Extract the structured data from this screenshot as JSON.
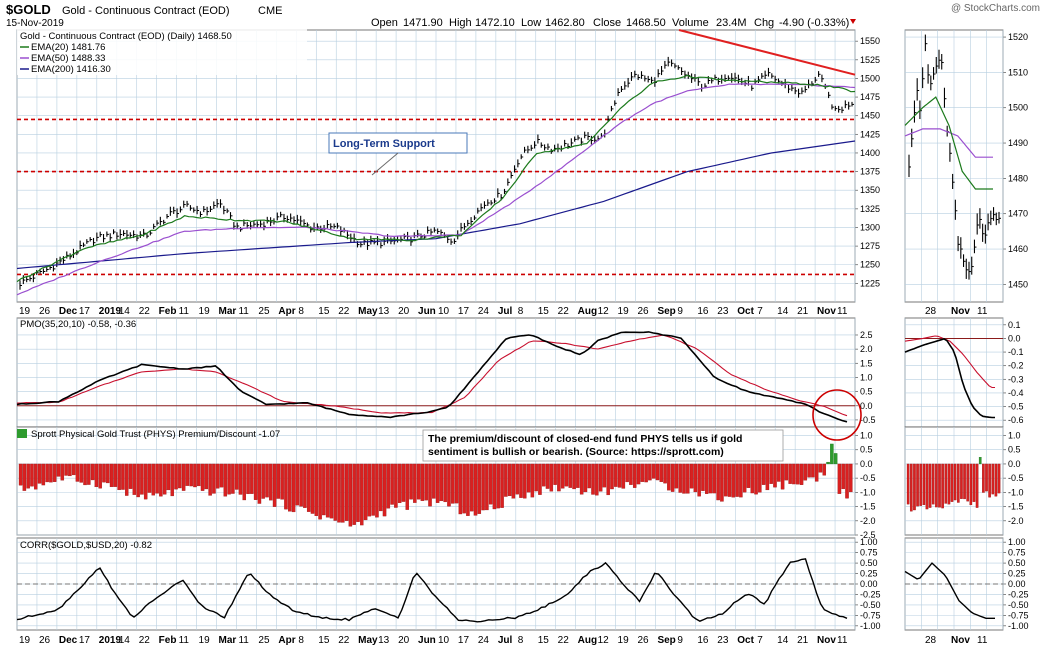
{
  "header": {
    "symbol": "$GOLD",
    "name": "Gold - Continuous Contract (EOD)",
    "exchange": "CME",
    "date": "15-Nov-2019",
    "watermark": "@ StockCharts.com",
    "open_label": "Open",
    "open": "1471.90",
    "high_label": "High",
    "high": "1472.10",
    "low_label": "Low",
    "low": "1462.80",
    "close_label": "Close",
    "close": "1468.50",
    "volume_label": "Volume",
    "volume": "23.4M",
    "chg_label": "Chg",
    "chg": "-4.90 (-0.33%)"
  },
  "colors": {
    "price": "#000000",
    "ema20": "#1c7a1c",
    "ema50": "#9a4fcf",
    "ema200": "#1a1a8c",
    "support": "#cc0000",
    "trend": "#e02020",
    "pmo": "#000000",
    "pmo_signal": "#c8102e",
    "hist_up": "#2e9b2e",
    "hist_down": "#d92020",
    "grid": "#b8cfe0",
    "panel_bg": "#ffffff"
  },
  "legend": {
    "main_title": "Gold - Continuous Contract (EOD) (Daily) 1468.50",
    "ema20": "EMA(20) 1481.76",
    "ema50": "EMA(50) 1488.33",
    "ema200": "EMA(200) 1416.30",
    "pmo": "PMO(35,20,10) -0.58, -0.36",
    "phys": "Sprott Physical Gold Trust (PHYS) Premium/Discount -1.07",
    "corr": "CORR($GOLD,$USD,20) -0.82"
  },
  "annotations": {
    "support_label": "Long-Term Support",
    "phys_note_line1": "The premium/discount of closed-end fund PHYS tells us if gold",
    "phys_note_line2": "sentiment is bullish or bearish. (Source: https://sprott.com)"
  },
  "x_labels_main": [
    "19",
    "26",
    "Dec",
    "17",
    "2019",
    "14",
    "22",
    "Feb",
    "11",
    "19",
    "Mar",
    "11",
    "25",
    "Apr",
    "8",
    "15",
    "22",
    "May",
    "13",
    "20",
    "Jun",
    "10",
    "17",
    "24",
    "Jul",
    "8",
    "15",
    "22",
    "Aug",
    "12",
    "19",
    "26",
    "Sep",
    "9",
    "16",
    "23",
    "Oct",
    "7",
    "14",
    "21",
    "Nov",
    "11"
  ],
  "x_labels_right": [
    "28",
    "Nov",
    "11"
  ],
  "chart_data": [
    {
      "type": "line",
      "title": "Gold - Continuous Contract (EOD) (Daily) 1468.50",
      "ylim": [
        1200,
        1565
      ],
      "y_ticks": [
        1225,
        1250,
        1275,
        1300,
        1325,
        1350,
        1375,
        1400,
        1425,
        1450,
        1475,
        1500,
        1525,
        1550
      ],
      "support_levels": [
        1445,
        1375,
        1237
      ],
      "trend_line": [
        [
          0.79,
          1565
        ],
        [
          1.0,
          1505
        ]
      ],
      "anchors_close": [
        [
          0,
          1225
        ],
        [
          0.03,
          1242
        ],
        [
          0.06,
          1262
        ],
        [
          0.09,
          1285
        ],
        [
          0.12,
          1292
        ],
        [
          0.15,
          1288
        ],
        [
          0.18,
          1318
        ],
        [
          0.2,
          1328
        ],
        [
          0.22,
          1320
        ],
        [
          0.24,
          1333
        ],
        [
          0.26,
          1300
        ],
        [
          0.29,
          1305
        ],
        [
          0.32,
          1315
        ],
        [
          0.35,
          1300
        ],
        [
          0.38,
          1300
        ],
        [
          0.41,
          1278
        ],
        [
          0.44,
          1280
        ],
        [
          0.47,
          1285
        ],
        [
          0.5,
          1295
        ],
        [
          0.52,
          1282
        ],
        [
          0.54,
          1310
        ],
        [
          0.56,
          1333
        ],
        [
          0.58,
          1345
        ],
        [
          0.6,
          1393
        ],
        [
          0.62,
          1415
        ],
        [
          0.64,
          1405
        ],
        [
          0.66,
          1412
        ],
        [
          0.68,
          1420
        ],
        [
          0.7,
          1420
        ],
        [
          0.72,
          1485
        ],
        [
          0.74,
          1505
        ],
        [
          0.76,
          1495
        ],
        [
          0.78,
          1520
        ],
        [
          0.8,
          1505
        ],
        [
          0.82,
          1490
        ],
        [
          0.85,
          1505
        ],
        [
          0.88,
          1490
        ],
        [
          0.9,
          1505
        ],
        [
          0.92,
          1490
        ],
        [
          0.94,
          1480
        ],
        [
          0.96,
          1505
        ],
        [
          0.98,
          1455
        ],
        [
          1.0,
          1468
        ]
      ],
      "ema20_anchors": [
        [
          0,
          1228
        ],
        [
          0.08,
          1272
        ],
        [
          0.15,
          1290
        ],
        [
          0.2,
          1315
        ],
        [
          0.26,
          1310
        ],
        [
          0.32,
          1308
        ],
        [
          0.4,
          1285
        ],
        [
          0.47,
          1283
        ],
        [
          0.53,
          1290
        ],
        [
          0.58,
          1340
        ],
        [
          0.62,
          1400
        ],
        [
          0.68,
          1412
        ],
        [
          0.72,
          1460
        ],
        [
          0.76,
          1495
        ],
        [
          0.8,
          1503
        ],
        [
          0.85,
          1497
        ],
        [
          0.9,
          1495
        ],
        [
          0.95,
          1492
        ],
        [
          0.98,
          1487
        ],
        [
          1.0,
          1482
        ]
      ],
      "ema50_anchors": [
        [
          0,
          1210
        ],
        [
          0.1,
          1255
        ],
        [
          0.2,
          1295
        ],
        [
          0.28,
          1300
        ],
        [
          0.35,
          1300
        ],
        [
          0.45,
          1288
        ],
        [
          0.53,
          1290
        ],
        [
          0.6,
          1340
        ],
        [
          0.65,
          1380
        ],
        [
          0.72,
          1440
        ],
        [
          0.76,
          1467
        ],
        [
          0.8,
          1483
        ],
        [
          0.85,
          1492
        ],
        [
          0.9,
          1492
        ],
        [
          0.95,
          1491
        ],
        [
          1.0,
          1488
        ]
      ],
      "ema200_anchors": [
        [
          0,
          1245
        ],
        [
          0.2,
          1265
        ],
        [
          0.4,
          1280
        ],
        [
          0.5,
          1285
        ],
        [
          0.6,
          1305
        ],
        [
          0.7,
          1335
        ],
        [
          0.8,
          1375
        ],
        [
          0.9,
          1400
        ],
        [
          1.0,
          1416
        ]
      ],
      "right_panel": {
        "ylim": [
          1445,
          1522
        ],
        "y_ticks": [
          1450,
          1460,
          1470,
          1480,
          1490,
          1500,
          1510,
          1520
        ],
        "anchors_close": [
          [
            0,
            1485
          ],
          [
            0.08,
            1505
          ],
          [
            0.12,
            1500
          ],
          [
            0.18,
            1518
          ],
          [
            0.22,
            1505
          ],
          [
            0.28,
            1508
          ],
          [
            0.35,
            1515
          ],
          [
            0.42,
            1495
          ],
          [
            0.48,
            1480
          ],
          [
            0.55,
            1462
          ],
          [
            0.6,
            1455
          ],
          [
            0.68,
            1452
          ],
          [
            0.72,
            1458
          ],
          [
            0.78,
            1470
          ],
          [
            0.85,
            1462
          ],
          [
            0.9,
            1468
          ]
        ],
        "ema20_anchors": [
          [
            0,
            1495
          ],
          [
            0.2,
            1500
          ],
          [
            0.35,
            1503
          ],
          [
            0.5,
            1495
          ],
          [
            0.65,
            1482
          ],
          [
            0.8,
            1477
          ]
        ],
        "ema50_anchors": [
          [
            0,
            1492
          ],
          [
            0.2,
            1494
          ],
          [
            0.4,
            1494
          ],
          [
            0.6,
            1492
          ],
          [
            0.8,
            1486
          ]
        ]
      }
    },
    {
      "type": "line",
      "title": "PMO(35,20,10) -0.58, -0.36",
      "ylim": [
        -0.75,
        3.1
      ],
      "y_ticks": [
        -0.5,
        0.0,
        0.5,
        1.0,
        1.5,
        2.0,
        2.5
      ],
      "reference": 0.0,
      "pmo_anchors": [
        [
          0,
          0.05
        ],
        [
          0.05,
          0.15
        ],
        [
          0.1,
          0.9
        ],
        [
          0.15,
          1.45
        ],
        [
          0.2,
          1.3
        ],
        [
          0.24,
          1.4
        ],
        [
          0.27,
          0.5
        ],
        [
          0.3,
          0.05
        ],
        [
          0.35,
          0.1
        ],
        [
          0.4,
          -0.3
        ],
        [
          0.45,
          -0.4
        ],
        [
          0.5,
          -0.2
        ],
        [
          0.52,
          -0.05
        ],
        [
          0.55,
          1.0
        ],
        [
          0.59,
          2.4
        ],
        [
          0.62,
          2.5
        ],
        [
          0.65,
          2.1
        ],
        [
          0.68,
          1.8
        ],
        [
          0.7,
          2.3
        ],
        [
          0.73,
          2.6
        ],
        [
          0.76,
          2.6
        ],
        [
          0.8,
          2.4
        ],
        [
          0.84,
          1.0
        ],
        [
          0.88,
          0.5
        ],
        [
          0.92,
          0.25
        ],
        [
          0.95,
          0.05
        ],
        [
          0.97,
          -0.25
        ],
        [
          1.0,
          -0.58
        ]
      ],
      "signal_anchors": [
        [
          0,
          0.1
        ],
        [
          0.05,
          0.12
        ],
        [
          0.1,
          0.7
        ],
        [
          0.15,
          1.2
        ],
        [
          0.2,
          1.3
        ],
        [
          0.24,
          1.2
        ],
        [
          0.28,
          0.7
        ],
        [
          0.32,
          0.15
        ],
        [
          0.38,
          0.0
        ],
        [
          0.44,
          -0.25
        ],
        [
          0.5,
          -0.25
        ],
        [
          0.54,
          0.3
        ],
        [
          0.58,
          1.6
        ],
        [
          0.62,
          2.3
        ],
        [
          0.66,
          2.2
        ],
        [
          0.7,
          2.0
        ],
        [
          0.74,
          2.3
        ],
        [
          0.78,
          2.5
        ],
        [
          0.82,
          2.0
        ],
        [
          0.86,
          1.1
        ],
        [
          0.9,
          0.6
        ],
        [
          0.94,
          0.2
        ],
        [
          0.97,
          0.0
        ],
        [
          1.0,
          -0.36
        ]
      ],
      "right_panel": {
        "ylim": [
          -0.65,
          0.15
        ],
        "y_ticks": [
          -0.6,
          -0.5,
          -0.4,
          -0.3,
          -0.2,
          -0.1,
          0.0,
          0.1
        ],
        "pmo_anchors": [
          [
            0,
            -0.1
          ],
          [
            0.2,
            -0.05
          ],
          [
            0.35,
            -0.02
          ],
          [
            0.45,
            0.0
          ],
          [
            0.55,
            -0.1
          ],
          [
            0.65,
            -0.35
          ],
          [
            0.75,
            -0.5
          ],
          [
            0.85,
            -0.57
          ],
          [
            0.95,
            -0.58
          ]
        ],
        "signal_anchors": [
          [
            0,
            -0.02
          ],
          [
            0.2,
            0.0
          ],
          [
            0.35,
            0.02
          ],
          [
            0.5,
            -0.02
          ],
          [
            0.65,
            -0.12
          ],
          [
            0.8,
            -0.25
          ],
          [
            0.95,
            -0.36
          ]
        ]
      }
    },
    {
      "type": "bar",
      "title": "Sprott Physical Gold Trust (PHYS) Premium/Discount -1.07",
      "ylim": [
        -2.5,
        1.3
      ],
      "y_ticks": [
        -2.5,
        -2.0,
        -1.5,
        -1.0,
        -0.5,
        0.0,
        0.5,
        1.0
      ],
      "anchors": [
        [
          0,
          -0.9
        ],
        [
          0.05,
          -0.5
        ],
        [
          0.1,
          -0.7
        ],
        [
          0.15,
          -1.2
        ],
        [
          0.2,
          -0.9
        ],
        [
          0.25,
          -1.0
        ],
        [
          0.3,
          -1.3
        ],
        [
          0.35,
          -1.7
        ],
        [
          0.4,
          -2.2
        ],
        [
          0.45,
          -1.5
        ],
        [
          0.5,
          -1.3
        ],
        [
          0.55,
          -1.8
        ],
        [
          0.6,
          -1.1
        ],
        [
          0.65,
          -0.8
        ],
        [
          0.7,
          -1.0
        ],
        [
          0.75,
          -0.6
        ],
        [
          0.8,
          -0.9
        ],
        [
          0.85,
          -1.2
        ],
        [
          0.9,
          -0.8
        ],
        [
          0.95,
          -0.6
        ],
        [
          0.97,
          -0.3
        ],
        [
          0.98,
          1.1
        ],
        [
          0.985,
          -1.0
        ],
        [
          1.0,
          -1.07
        ]
      ],
      "right_panel": {
        "ylim": [
          -2.5,
          1.3
        ],
        "anchors": [
          [
            0,
            -1.5
          ],
          [
            0.2,
            -1.6
          ],
          [
            0.4,
            -1.5
          ],
          [
            0.6,
            -1.3
          ],
          [
            0.78,
            -1.4
          ],
          [
            0.8,
            1.1
          ],
          [
            0.83,
            -1.1
          ],
          [
            1.0,
            -1.07
          ]
        ]
      }
    },
    {
      "type": "line",
      "title": "CORR($GOLD,$USD,20) -0.82",
      "ylim": [
        -1.1,
        1.1
      ],
      "y_ticks": [
        -1.0,
        -0.75,
        -0.5,
        -0.25,
        0.0,
        0.25,
        0.5,
        0.75,
        1.0
      ],
      "reference": 0.0,
      "anchors": [
        [
          0,
          -0.85
        ],
        [
          0.05,
          -0.6
        ],
        [
          0.08,
          0.0
        ],
        [
          0.1,
          0.4
        ],
        [
          0.12,
          -0.3
        ],
        [
          0.14,
          -0.8
        ],
        [
          0.17,
          -0.3
        ],
        [
          0.2,
          0.1
        ],
        [
          0.22,
          -0.5
        ],
        [
          0.25,
          -0.8
        ],
        [
          0.28,
          0.3
        ],
        [
          0.3,
          -0.2
        ],
        [
          0.33,
          -0.6
        ],
        [
          0.36,
          -0.8
        ],
        [
          0.4,
          -0.85
        ],
        [
          0.43,
          -0.6
        ],
        [
          0.46,
          -0.8
        ],
        [
          0.48,
          0.3
        ],
        [
          0.5,
          -0.2
        ],
        [
          0.53,
          -0.85
        ],
        [
          0.56,
          -0.9
        ],
        [
          0.6,
          -0.8
        ],
        [
          0.63,
          -0.6
        ],
        [
          0.66,
          -0.3
        ],
        [
          0.69,
          0.3
        ],
        [
          0.71,
          0.5
        ],
        [
          0.73,
          0.0
        ],
        [
          0.75,
          -0.4
        ],
        [
          0.77,
          0.3
        ],
        [
          0.79,
          -0.2
        ],
        [
          0.82,
          -0.9
        ],
        [
          0.85,
          -0.7
        ],
        [
          0.88,
          -0.2
        ],
        [
          0.9,
          -0.5
        ],
        [
          0.93,
          0.5
        ],
        [
          0.95,
          0.6
        ],
        [
          0.97,
          -0.6
        ],
        [
          1.0,
          -0.82
        ]
      ],
      "right_panel": {
        "ylim": [
          -1.1,
          1.1
        ],
        "anchors": [
          [
            0,
            0.3
          ],
          [
            0.15,
            0.1
          ],
          [
            0.3,
            0.5
          ],
          [
            0.45,
            0.2
          ],
          [
            0.6,
            -0.4
          ],
          [
            0.75,
            -0.7
          ],
          [
            0.9,
            -0.82
          ]
        ]
      }
    }
  ]
}
